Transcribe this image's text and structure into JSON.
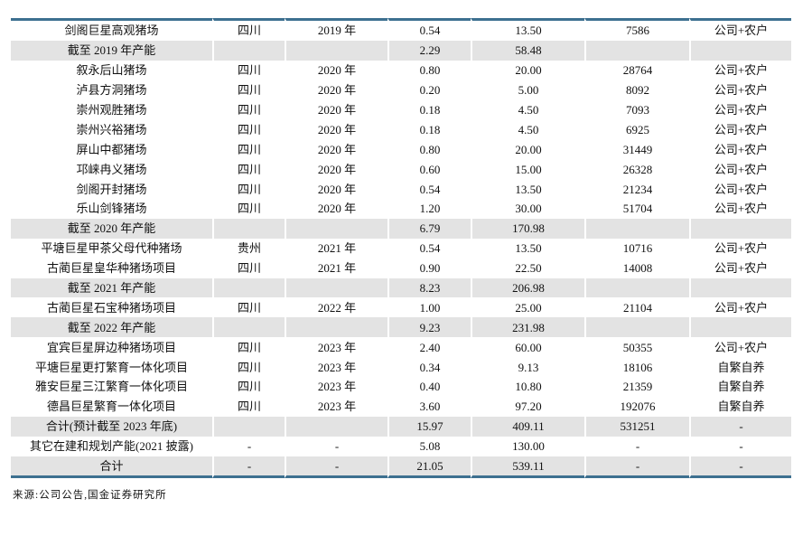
{
  "colors": {
    "border_blue": "#3d7090",
    "row_shade": "#e3e3e3",
    "text": "#111111"
  },
  "table": {
    "column_semantics": [
      "farm-name",
      "province",
      "year",
      "value1",
      "value2",
      "value3",
      "mode"
    ],
    "rows": [
      {
        "shaded": false,
        "cells": [
          "剑阁巨星高观猪场",
          "四川",
          "2019 年",
          "0.54",
          "13.50",
          "7586",
          "公司+农户"
        ]
      },
      {
        "shaded": true,
        "cells": [
          "截至 2019 年产能",
          "",
          "",
          "2.29",
          "58.48",
          "",
          ""
        ]
      },
      {
        "shaded": false,
        "cells": [
          "叙永后山猪场",
          "四川",
          "2020 年",
          "0.80",
          "20.00",
          "28764",
          "公司+农户"
        ]
      },
      {
        "shaded": false,
        "cells": [
          "泸县方洞猪场",
          "四川",
          "2020 年",
          "0.20",
          "5.00",
          "8092",
          "公司+农户"
        ]
      },
      {
        "shaded": false,
        "cells": [
          "崇州观胜猪场",
          "四川",
          "2020 年",
          "0.18",
          "4.50",
          "7093",
          "公司+农户"
        ]
      },
      {
        "shaded": false,
        "cells": [
          "崇州兴裕猪场",
          "四川",
          "2020 年",
          "0.18",
          "4.50",
          "6925",
          "公司+农户"
        ]
      },
      {
        "shaded": false,
        "cells": [
          "屏山中都猪场",
          "四川",
          "2020 年",
          "0.80",
          "20.00",
          "31449",
          "公司+农户"
        ]
      },
      {
        "shaded": false,
        "cells": [
          "邛崃冉义猪场",
          "四川",
          "2020 年",
          "0.60",
          "15.00",
          "26328",
          "公司+农户"
        ]
      },
      {
        "shaded": false,
        "cells": [
          "剑阁开封猪场",
          "四川",
          "2020 年",
          "0.54",
          "13.50",
          "21234",
          "公司+农户"
        ]
      },
      {
        "shaded": false,
        "cells": [
          "乐山剑锋猪场",
          "四川",
          "2020 年",
          "1.20",
          "30.00",
          "51704",
          "公司+农户"
        ]
      },
      {
        "shaded": true,
        "cells": [
          "截至 2020 年产能",
          "",
          "",
          "6.79",
          "170.98",
          "",
          ""
        ]
      },
      {
        "shaded": false,
        "cells": [
          "平塘巨星甲茶父母代种猪场",
          "贵州",
          "2021 年",
          "0.54",
          "13.50",
          "10716",
          "公司+农户"
        ]
      },
      {
        "shaded": false,
        "cells": [
          "古蔺巨星皇华种猪场项目",
          "四川",
          "2021 年",
          "0.90",
          "22.50",
          "14008",
          "公司+农户"
        ]
      },
      {
        "shaded": true,
        "cells": [
          "截至 2021 年产能",
          "",
          "",
          "8.23",
          "206.98",
          "",
          ""
        ]
      },
      {
        "shaded": false,
        "cells": [
          "古蔺巨星石宝种猪场项目",
          "四川",
          "2022 年",
          "1.00",
          "25.00",
          "21104",
          "公司+农户"
        ]
      },
      {
        "shaded": true,
        "cells": [
          "截至 2022 年产能",
          "",
          "",
          "9.23",
          "231.98",
          "",
          ""
        ]
      },
      {
        "shaded": false,
        "cells": [
          "宜宾巨星屏边种猪场项目",
          "四川",
          "2023 年",
          "2.40",
          "60.00",
          "50355",
          "公司+农户"
        ]
      },
      {
        "shaded": false,
        "cells": [
          "平塘巨星更打繁育一体化项目",
          "四川",
          "2023 年",
          "0.34",
          "9.13",
          "18106",
          "自繁自养"
        ]
      },
      {
        "shaded": false,
        "cells": [
          "雅安巨星三江繁育一体化项目",
          "四川",
          "2023 年",
          "0.40",
          "10.80",
          "21359",
          "自繁自养"
        ]
      },
      {
        "shaded": false,
        "cells": [
          "德昌巨星繁育一体化项目",
          "四川",
          "2023 年",
          "3.60",
          "97.20",
          "192076",
          "自繁自养"
        ]
      },
      {
        "shaded": true,
        "cells": [
          "合计(预计截至 2023 年底)",
          "",
          "",
          "15.97",
          "409.11",
          "531251",
          "-"
        ]
      },
      {
        "shaded": false,
        "cells": [
          "其它在建和规划产能(2021 披露)",
          "-",
          "-",
          "5.08",
          "130.00",
          "-",
          "-"
        ]
      },
      {
        "shaded": true,
        "cells": [
          "合计",
          "-",
          "-",
          "21.05",
          "539.11",
          "-",
          "-"
        ]
      }
    ]
  },
  "footer": {
    "source_note": "来源:公司公告,国金证券研究所"
  }
}
